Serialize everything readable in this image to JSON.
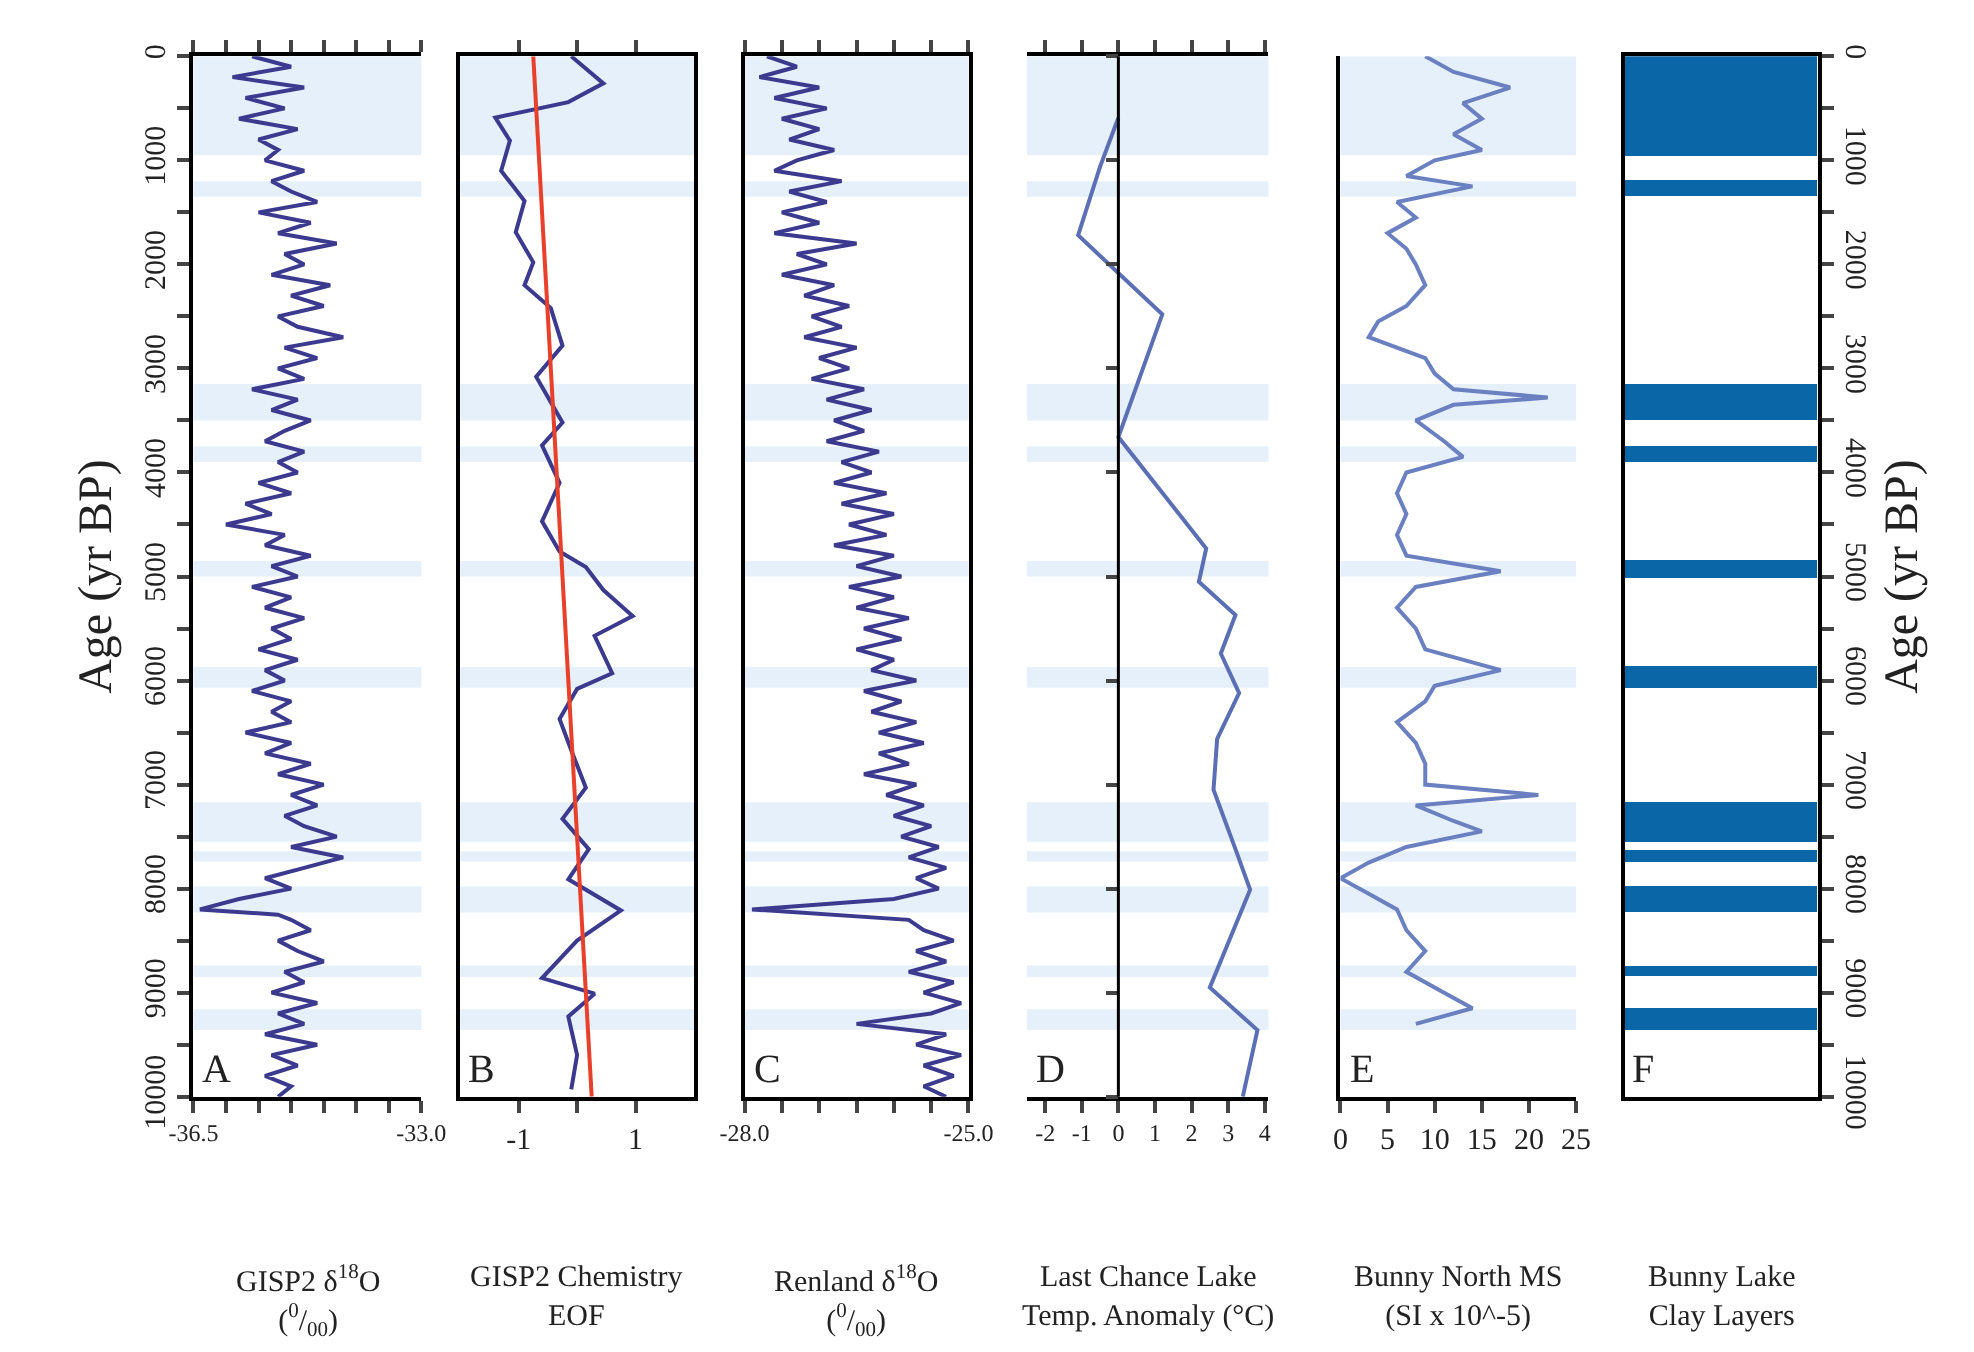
{
  "chart_data": [
    {
      "type": "line",
      "orientation": "horizontal",
      "xlabel": "GISP2 δ$^{18}$O\n($^{0}$/$_{00}$)",
      "ylabel": "Age (yr BP)",
      "annotations": [
        "A"
      ],
      "xlim": [
        -36.5,
        -33.0
      ],
      "xticks": [
        {
          "value": -36.5,
          "label": "-36.5"
        },
        {
          "value": -36,
          "label": null
        },
        {
          "value": -35.5,
          "label": null
        },
        {
          "value": -35,
          "label": null
        },
        {
          "value": -34.5,
          "label": null
        },
        {
          "value": -34,
          "label": null
        },
        {
          "value": -33.5,
          "label": null
        },
        {
          "value": -33,
          "label": "-33.0"
        }
      ],
      "ylim": [
        10000,
        0
      ],
      "yticks": [
        0,
        {
          "value": 500,
          "label": null
        },
        1000,
        {
          "value": 1500,
          "label": null
        },
        2000,
        {
          "value": 2500,
          "label": null
        },
        3000,
        {
          "value": 3500,
          "label": null
        },
        4000,
        {
          "value": 4500,
          "label": null
        },
        5000,
        {
          "value": 5500,
          "label": null
        },
        6000,
        {
          "value": 6500,
          "label": null
        },
        7000,
        {
          "value": 7500,
          "label": null
        },
        8000,
        {
          "value": 8500,
          "label": null
        },
        9000,
        {
          "value": 9500,
          "label": null
        },
        10000
      ],
      "bands": [
        {
          "axis": "y",
          "from": 0,
          "to": 950,
          "color": "#e6f0fa"
        },
        {
          "axis": "y",
          "from": 1200,
          "to": 1350,
          "color": "#e6f0fa"
        },
        {
          "axis": "y",
          "from": 3150,
          "to": 3500,
          "color": "#e6f0fa"
        },
        {
          "axis": "y",
          "from": 3750,
          "to": 3900,
          "color": "#e6f0fa"
        },
        {
          "axis": "y",
          "from": 4850,
          "to": 5000,
          "color": "#e6f0fa"
        },
        {
          "axis": "y",
          "from": 5870,
          "to": 6070,
          "color": "#e6f0fa"
        },
        {
          "axis": "y",
          "from": 7170,
          "to": 7550,
          "color": "#e6f0fa"
        },
        {
          "axis": "y",
          "from": 7640,
          "to": 7740,
          "color": "#e6f0fa"
        },
        {
          "axis": "y",
          "from": 7980,
          "to": 8230,
          "color": "#e6f0fa"
        },
        {
          "axis": "y",
          "from": 8740,
          "to": 8850,
          "color": "#e6f0fa"
        },
        {
          "axis": "y",
          "from": 9160,
          "to": 9360,
          "color": "#e6f0fa"
        }
      ],
      "series": [
        {
          "color": "#3c3a8e",
          "x": [
            0,
            100,
            200,
            300,
            400,
            500,
            600,
            700,
            800,
            900,
            1000,
            1100,
            1200,
            1300,
            1400,
            1500,
            1600,
            1700,
            1800,
            1900,
            2000,
            2100,
            2200,
            2300,
            2400,
            2500,
            2600,
            2700,
            2800,
            2900,
            3000,
            3100,
            3200,
            3300,
            3400,
            3500,
            3600,
            3700,
            3800,
            3900,
            4000,
            4100,
            4200,
            4300,
            4400,
            4500,
            4600,
            4700,
            4800,
            4900,
            5000,
            5100,
            5200,
            5300,
            5400,
            5500,
            5600,
            5700,
            5800,
            5900,
            6000,
            6100,
            6200,
            6300,
            6400,
            6500,
            6600,
            6700,
            6800,
            6900,
            7000,
            7100,
            7200,
            7300,
            7400,
            7500,
            7600,
            7700,
            7800,
            7900,
            8000,
            8100,
            8200,
            8250,
            8300,
            8400,
            8500,
            8600,
            8700,
            8800,
            8900,
            9000,
            9100,
            9200,
            9300,
            9400,
            9500,
            9600,
            9700,
            9800,
            9900,
            10000
          ],
          "values": [
            -35.6,
            -35.0,
            -35.9,
            -34.8,
            -35.7,
            -35.1,
            -35.8,
            -34.9,
            -35.5,
            -35.2,
            -35.4,
            -34.8,
            -35.3,
            -35.0,
            -34.6,
            -35.5,
            -34.7,
            -35.2,
            -34.3,
            -35.1,
            -34.8,
            -35.3,
            -34.4,
            -35.0,
            -34.5,
            -35.2,
            -34.9,
            -34.2,
            -35.1,
            -34.6,
            -35.2,
            -34.8,
            -35.6,
            -34.9,
            -35.3,
            -34.7,
            -35.1,
            -35.4,
            -34.8,
            -35.2,
            -34.9,
            -35.5,
            -35.0,
            -35.7,
            -35.3,
            -36.0,
            -35.1,
            -35.4,
            -34.7,
            -35.3,
            -34.9,
            -35.6,
            -35.0,
            -35.4,
            -34.8,
            -35.3,
            -35.0,
            -35.5,
            -34.9,
            -35.4,
            -35.1,
            -35.6,
            -35.0,
            -35.3,
            -35.0,
            -35.7,
            -35.0,
            -35.4,
            -34.7,
            -35.2,
            -34.5,
            -35.0,
            -34.6,
            -35.1,
            -34.8,
            -34.3,
            -35.0,
            -34.2,
            -34.8,
            -35.4,
            -35.0,
            -35.8,
            -36.4,
            -35.2,
            -35.0,
            -34.7,
            -35.2,
            -34.9,
            -34.5,
            -35.1,
            -34.8,
            -35.3,
            -34.6,
            -35.2,
            -34.8,
            -35.4,
            -34.6,
            -35.3,
            -34.9,
            -35.4,
            -35.0,
            -35.2
          ]
        }
      ]
    },
    {
      "type": "line",
      "orientation": "horizontal",
      "xlabel": "GISP2 Chemistry\nEOF",
      "annotations": [
        "B"
      ],
      "tick_labels": "x",
      "xlim": [
        -2,
        2
      ],
      "xticks": [
        -1,
        {
          "value": 0,
          "label": null
        },
        1
      ],
      "ylim": [
        10000,
        0
      ],
      "bands": [
        {
          "axis": "y",
          "from": 0,
          "to": 950,
          "color": "#e6f0fa"
        },
        {
          "axis": "y",
          "from": 1200,
          "to": 1350,
          "color": "#e6f0fa"
        },
        {
          "axis": "y",
          "from": 3150,
          "to": 3500,
          "color": "#e6f0fa"
        },
        {
          "axis": "y",
          "from": 3750,
          "to": 3900,
          "color": "#e6f0fa"
        },
        {
          "axis": "y",
          "from": 4850,
          "to": 5000,
          "color": "#e6f0fa"
        },
        {
          "axis": "y",
          "from": 5870,
          "to": 6070,
          "color": "#e6f0fa"
        },
        {
          "axis": "y",
          "from": 7170,
          "to": 7550,
          "color": "#e6f0fa"
        },
        {
          "axis": "y",
          "from": 7640,
          "to": 7740,
          "color": "#e6f0fa"
        },
        {
          "axis": "y",
          "from": 7980,
          "to": 8230,
          "color": "#e6f0fa"
        },
        {
          "axis": "y",
          "from": 8740,
          "to": 8850,
          "color": "#e6f0fa"
        },
        {
          "axis": "y",
          "from": 9160,
          "to": 9360,
          "color": "#e6f0fa"
        }
      ],
      "series": [
        {
          "type": "line",
          "color": "#3c3a8e",
          "x": [
            0,
            260,
            440,
            590,
            810,
            1100,
            1390,
            1690,
            1980,
            2200,
            2420,
            2780,
            3080,
            3520,
            3740,
            4100,
            4470,
            4760,
            4910,
            5130,
            5380,
            5570,
            5930,
            6080,
            6370,
            6670,
            7030,
            7330,
            7620,
            7910,
            8210,
            8500,
            8860,
            9010,
            9230,
            9600,
            9930
          ],
          "values": [
            -0.1,
            0.45,
            -0.15,
            -1.4,
            -1.15,
            -1.3,
            -0.9,
            -1.05,
            -0.75,
            -0.9,
            -0.45,
            -0.25,
            -0.7,
            -0.25,
            -0.6,
            -0.3,
            -0.6,
            -0.3,
            0.15,
            0.45,
            0.95,
            0.3,
            0.6,
            0.0,
            -0.3,
            -0.1,
            0.15,
            -0.25,
            0.2,
            -0.15,
            0.75,
            0.0,
            -0.6,
            0.3,
            -0.15,
            0.0,
            -0.1
          ]
        },
        {
          "type": "line",
          "color": "#e8402a",
          "x": [
            0,
            10000
          ],
          "values": [
            -0.75,
            0.25
          ]
        }
      ]
    },
    {
      "type": "line",
      "orientation": "horizontal",
      "xlabel": "Renland δ$^{18}$O\n($^{0}$/$_{00}$)",
      "annotations": [
        "C"
      ],
      "tick_labels": "x",
      "xlim": [
        -28.0,
        -25.0
      ],
      "xticks": [
        {
          "value": -28,
          "label": "-28.0"
        },
        {
          "value": -27.5,
          "label": null
        },
        {
          "value": -27,
          "label": null
        },
        {
          "value": -26.5,
          "label": null
        },
        {
          "value": -26,
          "label": null
        },
        {
          "value": -25.5,
          "label": null
        },
        {
          "value": -25,
          "label": "-25.0"
        }
      ],
      "ylim": [
        10000,
        0
      ],
      "bands": [
        {
          "axis": "y",
          "from": 0,
          "to": 950,
          "color": "#e6f0fa"
        },
        {
          "axis": "y",
          "from": 1200,
          "to": 1350,
          "color": "#e6f0fa"
        },
        {
          "axis": "y",
          "from": 3150,
          "to": 3500,
          "color": "#e6f0fa"
        },
        {
          "axis": "y",
          "from": 3750,
          "to": 3900,
          "color": "#e6f0fa"
        },
        {
          "axis": "y",
          "from": 4850,
          "to": 5000,
          "color": "#e6f0fa"
        },
        {
          "axis": "y",
          "from": 5870,
          "to": 6070,
          "color": "#e6f0fa"
        },
        {
          "axis": "y",
          "from": 7170,
          "to": 7550,
          "color": "#e6f0fa"
        },
        {
          "axis": "y",
          "from": 7640,
          "to": 7740,
          "color": "#e6f0fa"
        },
        {
          "axis": "y",
          "from": 7980,
          "to": 8230,
          "color": "#e6f0fa"
        },
        {
          "axis": "y",
          "from": 8740,
          "to": 8850,
          "color": "#e6f0fa"
        },
        {
          "axis": "y",
          "from": 9160,
          "to": 9360,
          "color": "#e6f0fa"
        }
      ],
      "series": [
        {
          "color": "#3c3a8e",
          "x": [
            0,
            100,
            200,
            300,
            400,
            500,
            600,
            700,
            800,
            900,
            1000,
            1100,
            1200,
            1300,
            1400,
            1500,
            1600,
            1700,
            1800,
            1900,
            2000,
            2100,
            2200,
            2300,
            2400,
            2500,
            2600,
            2700,
            2800,
            2900,
            3000,
            3100,
            3200,
            3300,
            3400,
            3500,
            3600,
            3700,
            3800,
            3900,
            4000,
            4100,
            4200,
            4300,
            4400,
            4500,
            4600,
            4700,
            4800,
            4900,
            5000,
            5100,
            5200,
            5300,
            5400,
            5500,
            5600,
            5700,
            5800,
            5900,
            6000,
            6100,
            6200,
            6300,
            6400,
            6500,
            6600,
            6700,
            6800,
            6900,
            7000,
            7100,
            7200,
            7300,
            7400,
            7500,
            7600,
            7700,
            7800,
            7900,
            8000,
            8100,
            8200,
            8300,
            8400,
            8500,
            8600,
            8700,
            8800,
            8900,
            9000,
            9100,
            9200,
            9300,
            9400,
            9500,
            9600,
            9700,
            9800,
            9900,
            10000
          ],
          "values": [
            -27.7,
            -27.3,
            -27.8,
            -27.0,
            -27.6,
            -26.9,
            -27.5,
            -27.0,
            -27.4,
            -26.8,
            -27.3,
            -27.6,
            -26.7,
            -27.4,
            -26.9,
            -27.5,
            -27.0,
            -27.6,
            -26.5,
            -27.3,
            -26.9,
            -27.5,
            -26.8,
            -27.2,
            -26.6,
            -27.1,
            -26.7,
            -27.2,
            -26.5,
            -27.0,
            -26.6,
            -27.1,
            -26.4,
            -26.9,
            -26.3,
            -26.8,
            -26.4,
            -26.9,
            -26.2,
            -26.7,
            -26.3,
            -26.8,
            -26.1,
            -26.7,
            -26.0,
            -26.6,
            -26.1,
            -26.8,
            -26.0,
            -26.5,
            -25.9,
            -26.6,
            -26.0,
            -26.5,
            -25.8,
            -26.4,
            -25.9,
            -26.5,
            -26.0,
            -26.3,
            -25.7,
            -26.4,
            -25.9,
            -26.3,
            -25.7,
            -26.2,
            -25.6,
            -26.2,
            -25.8,
            -26.4,
            -25.7,
            -26.1,
            -25.6,
            -26.0,
            -25.5,
            -25.9,
            -25.4,
            -25.8,
            -25.3,
            -25.7,
            -25.4,
            -26.0,
            -27.9,
            -25.8,
            -25.6,
            -25.2,
            -25.7,
            -25.3,
            -25.8,
            -25.2,
            -25.6,
            -25.1,
            -25.5,
            -26.5,
            -25.3,
            -25.7,
            -25.1,
            -25.6,
            -25.2,
            -25.6,
            -25.3
          ]
        }
      ]
    },
    {
      "type": "line",
      "orientation": "horizontal",
      "xlabel": "Last Chance Lake\nTemp. Anomaly (°C)",
      "annotations": [
        "D"
      ],
      "tick_labels": "x",
      "xlim": [
        -2.5,
        4.1
      ],
      "xticks": [
        -2,
        -1,
        0,
        1,
        2,
        3,
        4
      ],
      "ylim": [
        10000,
        0
      ],
      "yticks": [
        {
          "value": 0,
          "label": null
        },
        {
          "value": 1000,
          "label": null
        },
        {
          "value": 2000,
          "label": null
        },
        {
          "value": 3000,
          "label": null
        },
        {
          "value": 4000,
          "label": null
        },
        {
          "value": 5000,
          "label": null
        },
        {
          "value": 6000,
          "label": null
        },
        {
          "value": 7000,
          "label": null
        },
        {
          "value": 8000,
          "label": null
        },
        {
          "value": 9000,
          "label": null
        },
        {
          "value": 10000,
          "label": null
        }
      ],
      "ref_lines": [
        {
          "axis": "x",
          "value": 0,
          "color": "#000000"
        }
      ],
      "bands": [
        {
          "axis": "y",
          "from": 0,
          "to": 950,
          "color": "#e6f0fa"
        },
        {
          "axis": "y",
          "from": 1200,
          "to": 1350,
          "color": "#e6f0fa"
        },
        {
          "axis": "y",
          "from": 3150,
          "to": 3500,
          "color": "#e6f0fa"
        },
        {
          "axis": "y",
          "from": 3750,
          "to": 3900,
          "color": "#e6f0fa"
        },
        {
          "axis": "y",
          "from": 4850,
          "to": 5000,
          "color": "#e6f0fa"
        },
        {
          "axis": "y",
          "from": 5870,
          "to": 6070,
          "color": "#e6f0fa"
        },
        {
          "axis": "y",
          "from": 7170,
          "to": 7550,
          "color": "#e6f0fa"
        },
        {
          "axis": "y",
          "from": 7640,
          "to": 7740,
          "color": "#e6f0fa"
        },
        {
          "axis": "y",
          "from": 7980,
          "to": 8230,
          "color": "#e6f0fa"
        },
        {
          "axis": "y",
          "from": 8740,
          "to": 8850,
          "color": "#e6f0fa"
        },
        {
          "axis": "y",
          "from": 9160,
          "to": 9360,
          "color": "#e6f0fa"
        }
      ],
      "series": [
        {
          "color": "#5b6fb5",
          "x": [
            590,
            1060,
            1720,
            2480,
            3660,
            4730,
            5050,
            5370,
            5740,
            6120,
            6560,
            7050,
            7620,
            8010,
            8950,
            9360,
            10000
          ],
          "values": [
            0.0,
            -0.5,
            -1.1,
            1.2,
            0.0,
            2.4,
            2.2,
            3.2,
            2.8,
            3.3,
            2.7,
            2.6,
            3.2,
            3.6,
            2.5,
            3.8,
            3.4
          ]
        }
      ]
    },
    {
      "type": "line",
      "orientation": "horizontal",
      "xlabel": "Bunny North MS\n(SI x 10^-5)",
      "annotations": [
        "E"
      ],
      "tick_labels": "x",
      "xlim": [
        0,
        25
      ],
      "xticks": [
        0,
        5,
        10,
        15,
        20,
        25
      ],
      "ylim": [
        10000,
        0
      ],
      "bands": [
        {
          "axis": "y",
          "from": 0,
          "to": 950,
          "color": "#e6f0fa"
        },
        {
          "axis": "y",
          "from": 1200,
          "to": 1350,
          "color": "#e6f0fa"
        },
        {
          "axis": "y",
          "from": 3150,
          "to": 3500,
          "color": "#e6f0fa"
        },
        {
          "axis": "y",
          "from": 3750,
          "to": 3900,
          "color": "#e6f0fa"
        },
        {
          "axis": "y",
          "from": 4850,
          "to": 5000,
          "color": "#e6f0fa"
        },
        {
          "axis": "y",
          "from": 5870,
          "to": 6070,
          "color": "#e6f0fa"
        },
        {
          "axis": "y",
          "from": 7170,
          "to": 7550,
          "color": "#e6f0fa"
        },
        {
          "axis": "y",
          "from": 7640,
          "to": 7740,
          "color": "#e6f0fa"
        },
        {
          "axis": "y",
          "from": 7980,
          "to": 8230,
          "color": "#e6f0fa"
        },
        {
          "axis": "y",
          "from": 8740,
          "to": 8850,
          "color": "#e6f0fa"
        },
        {
          "axis": "y",
          "from": 9160,
          "to": 9360,
          "color": "#e6f0fa"
        }
      ],
      "series": [
        {
          "color": "#6a80c0",
          "x": [
            0,
            150,
            300,
            450,
            600,
            750,
            900,
            1000,
            1150,
            1250,
            1400,
            1550,
            1700,
            1850,
            2000,
            2200,
            2400,
            2550,
            2700,
            2900,
            3050,
            3200,
            3280,
            3350,
            3500,
            3700,
            3850,
            4000,
            4200,
            4400,
            4600,
            4800,
            4950,
            5100,
            5300,
            5500,
            5700,
            5900,
            6050,
            6200,
            6400,
            6600,
            6800,
            7000,
            7100,
            7200,
            7350,
            7450,
            7600,
            7750,
            7900,
            8050,
            8200,
            8400,
            8600,
            8800,
            9000,
            9150,
            9300
          ],
          "values": [
            9,
            12,
            18,
            13,
            15,
            12,
            15,
            10,
            7,
            14,
            6,
            8,
            5,
            7,
            8,
            9,
            7,
            4,
            3,
            9,
            10,
            12,
            22,
            12,
            8,
            11,
            13,
            7,
            6,
            7,
            6,
            7,
            17,
            8,
            6,
            8,
            9,
            17,
            10,
            9,
            6,
            8,
            9,
            9,
            21,
            8,
            12,
            15,
            7,
            3,
            0,
            3,
            6,
            7,
            9,
            7,
            11,
            14,
            8
          ]
        }
      ]
    },
    {
      "type": "bar",
      "categories": [
        null
      ],
      "xlabel": "Bunny Lake\nClay Layers",
      "ylabel": "Age (yr BP)",
      "annotations": [
        "F"
      ],
      "tick_labels": "y",
      "ylim": [
        10000,
        0
      ],
      "yticks": [
        0,
        {
          "value": 500,
          "label": null
        },
        1000,
        {
          "value": 1500,
          "label": null
        },
        2000,
        {
          "value": 2500,
          "label": null
        },
        3000,
        {
          "value": 3500,
          "label": null
        },
        4000,
        {
          "value": 4500,
          "label": null
        },
        5000,
        {
          "value": 5500,
          "label": null
        },
        6000,
        {
          "value": 6500,
          "label": null
        },
        7000,
        {
          "value": 7500,
          "label": null
        },
        8000,
        {
          "value": 8500,
          "label": null
        },
        9000,
        {
          "value": 9500,
          "label": null
        },
        10000
      ],
      "series": [
        {
          "color": "#0b66a8",
          "base": [
            0
          ],
          "values": [
            960
          ]
        },
        {
          "color": "#0b66a8",
          "base": [
            1200
          ],
          "values": [
            150
          ]
        },
        {
          "color": "#0b66a8",
          "base": [
            3150
          ],
          "values": [
            350
          ]
        },
        {
          "color": "#0b66a8",
          "base": [
            3750
          ],
          "values": [
            150
          ]
        },
        {
          "color": "#0b66a8",
          "base": [
            4840
          ],
          "values": [
            170
          ]
        },
        {
          "color": "#0b66a8",
          "base": [
            5870
          ],
          "values": [
            200
          ]
        },
        {
          "color": "#0b66a8",
          "base": [
            7170
          ],
          "values": [
            380
          ]
        },
        {
          "color": "#0b66a8",
          "base": [
            7640
          ],
          "values": [
            100
          ]
        },
        {
          "color": "#0b66a8",
          "base": [
            7980
          ],
          "values": [
            250
          ]
        },
        {
          "color": "#0b66a8",
          "base": [
            8740
          ],
          "values": [
            110
          ]
        },
        {
          "color": "#0b66a8",
          "base": [
            9160
          ],
          "values": [
            200
          ]
        }
      ]
    }
  ]
}
